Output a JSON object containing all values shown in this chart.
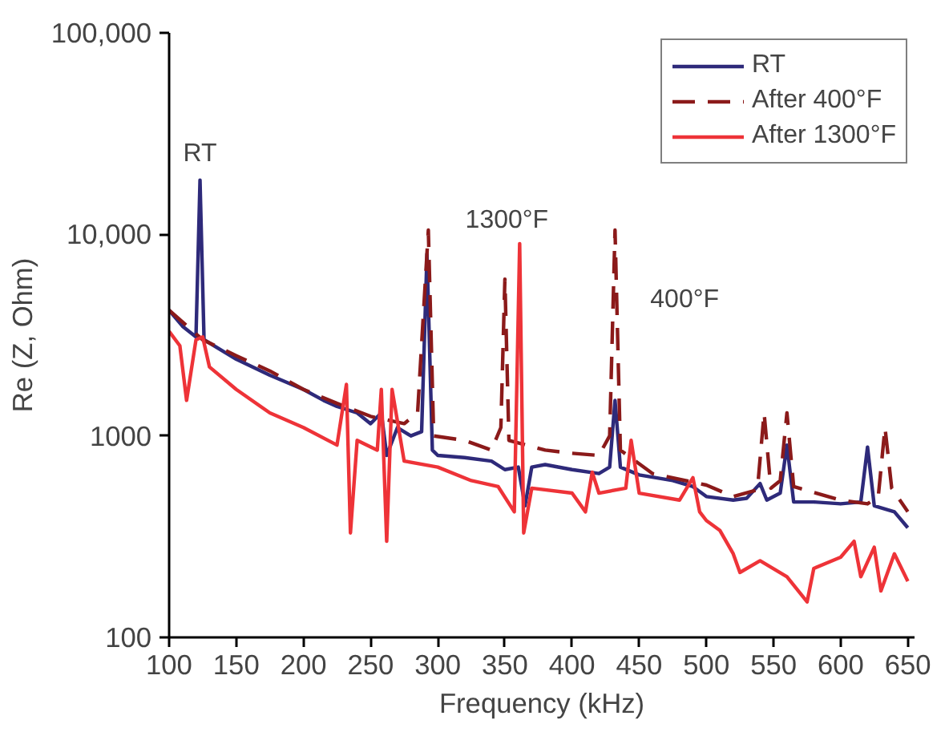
{
  "chart_data": {
    "type": "line",
    "xlabel": "Frequency (kHz)",
    "ylabel": "Re (Z, Ohm)",
    "log": "y",
    "xlim": [
      100,
      655
    ],
    "ylim": [
      100,
      100000
    ],
    "xticks": [
      100,
      150,
      200,
      250,
      300,
      350,
      400,
      450,
      500,
      550,
      600,
      650
    ],
    "yticks": [
      {
        "value": 100,
        "label": "100"
      },
      {
        "value": 1000,
        "label": "1000"
      },
      {
        "value": 10000,
        "label": "10,000"
      },
      {
        "value": 100000,
        "label": "100,000"
      }
    ],
    "grid": false,
    "legend": "top right",
    "annotations": [
      {
        "text": "RT",
        "x": 123,
        "y": 18600
      },
      {
        "text": "1300°F",
        "x": 361,
        "y": 9000
      },
      {
        "text": "400°F",
        "x": 432,
        "y": 10500
      }
    ],
    "series": [
      {
        "name": "RT",
        "color": "#2e2a7a",
        "line_style": "solid",
        "x": [
          100,
          110,
          120,
          123,
          126,
          150,
          175,
          200,
          215,
          225,
          240,
          250,
          258,
          262,
          270,
          280,
          288,
          292,
          296,
          300,
          320,
          340,
          350,
          360,
          365,
          370,
          380,
          400,
          420,
          428,
          432,
          436,
          450,
          475,
          490,
          500,
          520,
          530,
          540,
          545,
          555,
          560,
          565,
          580,
          600,
          615,
          620,
          625,
          640,
          650
        ],
        "values": [
          4200,
          3500,
          3100,
          18600,
          3000,
          2400,
          2000,
          1700,
          1500,
          1400,
          1300,
          1150,
          1300,
          800,
          1100,
          1000,
          1050,
          8000,
          850,
          800,
          780,
          750,
          680,
          700,
          450,
          700,
          720,
          680,
          650,
          700,
          1500,
          700,
          640,
          600,
          560,
          500,
          480,
          490,
          580,
          480,
          520,
          900,
          470,
          470,
          460,
          470,
          880,
          450,
          420,
          350
        ]
      },
      {
        "name": "After 400°F",
        "color": "#8b1a1a",
        "line_style": "dashed",
        "x": [
          100,
          125,
          150,
          175,
          200,
          225,
          250,
          275,
          285,
          293,
          297,
          320,
          340,
          347,
          350,
          353,
          380,
          400,
          420,
          428,
          432,
          436,
          460,
          500,
          520,
          538,
          543,
          548,
          555,
          560,
          565,
          600,
          620,
          628,
          633,
          638,
          650
        ],
        "values": [
          4200,
          3000,
          2500,
          2100,
          1700,
          1450,
          1250,
          1150,
          1300,
          10500,
          1000,
          950,
          850,
          1100,
          6000,
          950,
          850,
          820,
          800,
          1000,
          10500,
          850,
          650,
          570,
          500,
          540,
          1300,
          550,
          600,
          1300,
          560,
          480,
          460,
          500,
          1100,
          550,
          420
        ]
      },
      {
        "name": "After 1300°F",
        "color": "#ee3338",
        "line_style": "solid",
        "x": [
          100,
          108,
          113,
          120,
          125,
          130,
          150,
          175,
          200,
          225,
          232,
          235,
          240,
          255,
          258,
          262,
          266,
          275,
          300,
          325,
          345,
          357,
          361,
          364,
          370,
          400,
          410,
          415,
          420,
          440,
          444,
          450,
          480,
          490,
          495,
          500,
          510,
          520,
          525,
          540,
          560,
          575,
          580,
          600,
          610,
          615,
          625,
          630,
          640,
          650
        ],
        "values": [
          3300,
          2800,
          1500,
          3000,
          3100,
          2200,
          1700,
          1300,
          1100,
          900,
          1800,
          330,
          950,
          850,
          1700,
          300,
          1700,
          750,
          700,
          600,
          560,
          420,
          9000,
          330,
          550,
          520,
          420,
          660,
          520,
          550,
          950,
          520,
          480,
          620,
          420,
          380,
          340,
          260,
          210,
          240,
          200,
          150,
          220,
          250,
          300,
          200,
          280,
          170,
          260,
          190
        ]
      }
    ]
  }
}
